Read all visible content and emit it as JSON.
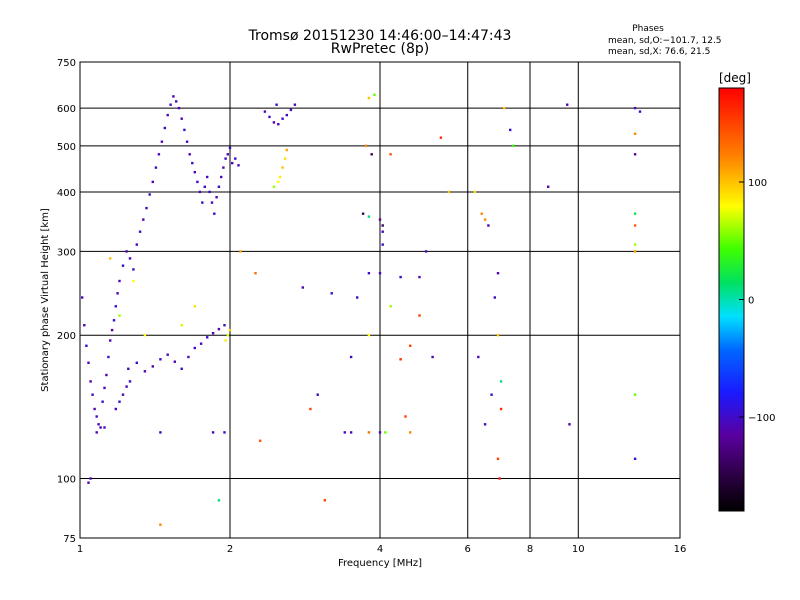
{
  "header": {
    "title_line1": "Tromsø 20151230 14:46:00–14:47:43",
    "title_line2": "RwPretec (8p)",
    "phases_title": "Phases",
    "phases_line1": "mean, sd,O:−101.7, 12.5",
    "phases_line2": "mean, sd,X:  76.6, 21.5"
  },
  "colorbar": {
    "unit_label": "[deg]",
    "range": [
      -180,
      180
    ],
    "ticks": [
      {
        "value": 100,
        "label": "100"
      },
      {
        "value": 0,
        "label": "0"
      },
      {
        "value": -100,
        "label": "−100"
      }
    ]
  },
  "chart_data": {
    "type": "scatter",
    "title": "Tromsø 20151230 14:46:00–14:47:43",
    "subtitle": "RwPretec (8p)",
    "xlabel": "Frequency [MHz]",
    "ylabel": "Stationary phase Virtual Height [km]",
    "x_scale": "log",
    "y_scale": "log",
    "xlim": [
      1,
      16
    ],
    "ylim": [
      75,
      750
    ],
    "grid": true,
    "x_ticks": [
      {
        "value": 1,
        "label": "1"
      },
      {
        "value": 2,
        "label": "2"
      },
      {
        "value": 4,
        "label": "4"
      },
      {
        "value": 6,
        "label": "6"
      },
      {
        "value": 8,
        "label": "8"
      },
      {
        "value": 10,
        "label": "10"
      },
      {
        "value": 16,
        "label": "16"
      }
    ],
    "y_ticks": [
      {
        "value": 75,
        "label": "75"
      },
      {
        "value": 100,
        "label": "100"
      },
      {
        "value": 200,
        "label": "200"
      },
      {
        "value": 300,
        "label": "300"
      },
      {
        "value": 400,
        "label": "400"
      },
      {
        "value": 500,
        "label": "500"
      },
      {
        "value": 600,
        "label": "600"
      },
      {
        "value": 750,
        "label": "750"
      }
    ],
    "color_variable": "phase [deg]",
    "points": [
      {
        "x": 1.01,
        "y": 240,
        "phase": -105
      },
      {
        "x": 1.02,
        "y": 210,
        "phase": -110
      },
      {
        "x": 1.03,
        "y": 190,
        "phase": -100
      },
      {
        "x": 1.04,
        "y": 175,
        "phase": -108
      },
      {
        "x": 1.05,
        "y": 160,
        "phase": -112
      },
      {
        "x": 1.06,
        "y": 150,
        "phase": -104
      },
      {
        "x": 1.07,
        "y": 140,
        "phase": -110
      },
      {
        "x": 1.08,
        "y": 135,
        "phase": -100
      },
      {
        "x": 1.09,
        "y": 130,
        "phase": -106
      },
      {
        "x": 1.1,
        "y": 128,
        "phase": -115
      },
      {
        "x": 1.11,
        "y": 145,
        "phase": -98
      },
      {
        "x": 1.12,
        "y": 155,
        "phase": -102
      },
      {
        "x": 1.13,
        "y": 165,
        "phase": -109
      },
      {
        "x": 1.14,
        "y": 180,
        "phase": -100
      },
      {
        "x": 1.15,
        "y": 195,
        "phase": -105
      },
      {
        "x": 1.16,
        "y": 205,
        "phase": -111
      },
      {
        "x": 1.17,
        "y": 215,
        "phase": -100
      },
      {
        "x": 1.18,
        "y": 230,
        "phase": -95
      },
      {
        "x": 1.19,
        "y": 245,
        "phase": -108
      },
      {
        "x": 1.2,
        "y": 260,
        "phase": -103
      },
      {
        "x": 1.22,
        "y": 280,
        "phase": -100
      },
      {
        "x": 1.24,
        "y": 300,
        "phase": -110
      },
      {
        "x": 1.26,
        "y": 290,
        "phase": -104
      },
      {
        "x": 1.28,
        "y": 275,
        "phase": -99
      },
      {
        "x": 1.3,
        "y": 310,
        "phase": -106
      },
      {
        "x": 1.32,
        "y": 330,
        "phase": -100
      },
      {
        "x": 1.34,
        "y": 350,
        "phase": -112
      },
      {
        "x": 1.36,
        "y": 370,
        "phase": -105
      },
      {
        "x": 1.38,
        "y": 395,
        "phase": -101
      },
      {
        "x": 1.4,
        "y": 420,
        "phase": -108
      },
      {
        "x": 1.42,
        "y": 450,
        "phase": -100
      },
      {
        "x": 1.44,
        "y": 480,
        "phase": -104
      },
      {
        "x": 1.46,
        "y": 510,
        "phase": -110
      },
      {
        "x": 1.48,
        "y": 545,
        "phase": -100
      },
      {
        "x": 1.5,
        "y": 580,
        "phase": -106
      },
      {
        "x": 1.52,
        "y": 610,
        "phase": -103
      },
      {
        "x": 1.54,
        "y": 635,
        "phase": -109
      },
      {
        "x": 1.56,
        "y": 620,
        "phase": -100
      },
      {
        "x": 1.58,
        "y": 600,
        "phase": -105
      },
      {
        "x": 1.6,
        "y": 570,
        "phase": -110
      },
      {
        "x": 1.62,
        "y": 540,
        "phase": -100
      },
      {
        "x": 1.64,
        "y": 510,
        "phase": -104
      },
      {
        "x": 1.66,
        "y": 480,
        "phase": -108
      },
      {
        "x": 1.68,
        "y": 460,
        "phase": -100
      },
      {
        "x": 1.7,
        "y": 440,
        "phase": -106
      },
      {
        "x": 1.72,
        "y": 420,
        "phase": -102
      },
      {
        "x": 1.74,
        "y": 400,
        "phase": -110
      },
      {
        "x": 1.76,
        "y": 380,
        "phase": -100
      },
      {
        "x": 1.78,
        "y": 410,
        "phase": -104
      },
      {
        "x": 1.8,
        "y": 430,
        "phase": -108
      },
      {
        "x": 1.82,
        "y": 400,
        "phase": -100
      },
      {
        "x": 1.84,
        "y": 380,
        "phase": -106
      },
      {
        "x": 1.86,
        "y": 360,
        "phase": -102
      },
      {
        "x": 1.88,
        "y": 390,
        "phase": -110
      },
      {
        "x": 1.9,
        "y": 410,
        "phase": -100
      },
      {
        "x": 1.92,
        "y": 430,
        "phase": -104
      },
      {
        "x": 1.94,
        "y": 450,
        "phase": -108
      },
      {
        "x": 1.96,
        "y": 470,
        "phase": -100
      },
      {
        "x": 1.98,
        "y": 480,
        "phase": -106
      },
      {
        "x": 2.0,
        "y": 495,
        "phase": -102
      },
      {
        "x": 2.02,
        "y": 460,
        "phase": -110
      },
      {
        "x": 2.05,
        "y": 470,
        "phase": -100
      },
      {
        "x": 2.08,
        "y": 455,
        "phase": -104
      },
      {
        "x": 1.25,
        "y": 170,
        "phase": -105
      },
      {
        "x": 1.3,
        "y": 175,
        "phase": -100
      },
      {
        "x": 1.35,
        "y": 168,
        "phase": -108
      },
      {
        "x": 1.4,
        "y": 172,
        "phase": -112
      },
      {
        "x": 1.45,
        "y": 178,
        "phase": -100
      },
      {
        "x": 1.5,
        "y": 182,
        "phase": -104
      },
      {
        "x": 1.55,
        "y": 176,
        "phase": -110
      },
      {
        "x": 1.6,
        "y": 170,
        "phase": -100
      },
      {
        "x": 1.65,
        "y": 180,
        "phase": -106
      },
      {
        "x": 1.7,
        "y": 188,
        "phase": -102
      },
      {
        "x": 1.75,
        "y": 192,
        "phase": -108
      },
      {
        "x": 1.8,
        "y": 198,
        "phase": -100
      },
      {
        "x": 1.85,
        "y": 202,
        "phase": -105
      },
      {
        "x": 1.9,
        "y": 206,
        "phase": -110
      },
      {
        "x": 1.95,
        "y": 210,
        "phase": -100
      },
      {
        "x": 1.98,
        "y": 200,
        "phase": 70
      },
      {
        "x": 1.96,
        "y": 195,
        "phase": 85
      },
      {
        "x": 2.0,
        "y": 205,
        "phase": 95
      },
      {
        "x": 1.18,
        "y": 140,
        "phase": -104
      },
      {
        "x": 1.2,
        "y": 145,
        "phase": -100
      },
      {
        "x": 1.22,
        "y": 150,
        "phase": -110
      },
      {
        "x": 1.24,
        "y": 156,
        "phase": -106
      },
      {
        "x": 1.26,
        "y": 160,
        "phase": -100
      },
      {
        "x": 1.08,
        "y": 125,
        "phase": -108
      },
      {
        "x": 1.12,
        "y": 128,
        "phase": -100
      },
      {
        "x": 1.45,
        "y": 125,
        "phase": -105
      },
      {
        "x": 1.85,
        "y": 125,
        "phase": -110
      },
      {
        "x": 1.95,
        "y": 125,
        "phase": -100
      },
      {
        "x": 1.05,
        "y": 100,
        "phase": -108
      },
      {
        "x": 1.04,
        "y": 98,
        "phase": -115
      },
      {
        "x": 2.35,
        "y": 590,
        "phase": -105
      },
      {
        "x": 2.4,
        "y": 575,
        "phase": -100
      },
      {
        "x": 2.45,
        "y": 560,
        "phase": -110
      },
      {
        "x": 2.5,
        "y": 555,
        "phase": -104
      },
      {
        "x": 2.55,
        "y": 570,
        "phase": -100
      },
      {
        "x": 2.6,
        "y": 580,
        "phase": -106
      },
      {
        "x": 2.65,
        "y": 595,
        "phase": -102
      },
      {
        "x": 2.7,
        "y": 610,
        "phase": -108
      },
      {
        "x": 2.48,
        "y": 610,
        "phase": -100
      },
      {
        "x": 2.52,
        "y": 430,
        "phase": 85
      },
      {
        "x": 2.55,
        "y": 450,
        "phase": 100
      },
      {
        "x": 2.58,
        "y": 470,
        "phase": 90
      },
      {
        "x": 2.6,
        "y": 490,
        "phase": 110
      },
      {
        "x": 2.5,
        "y": 420,
        "phase": 80
      },
      {
        "x": 2.45,
        "y": 410,
        "phase": 60
      },
      {
        "x": 1.35,
        "y": 200,
        "phase": 80
      },
      {
        "x": 1.6,
        "y": 210,
        "phase": 70
      },
      {
        "x": 1.7,
        "y": 230,
        "phase": 90
      },
      {
        "x": 1.2,
        "y": 220,
        "phase": 60
      },
      {
        "x": 1.28,
        "y": 260,
        "phase": 80
      },
      {
        "x": 1.15,
        "y": 290,
        "phase": 100
      },
      {
        "x": 2.1,
        "y": 300,
        "phase": 110
      },
      {
        "x": 2.25,
        "y": 270,
        "phase": 130
      },
      {
        "x": 3.8,
        "y": 630,
        "phase": 100
      },
      {
        "x": 3.9,
        "y": 640,
        "phase": 50
      },
      {
        "x": 3.75,
        "y": 500,
        "phase": 120
      },
      {
        "x": 3.85,
        "y": 480,
        "phase": -140
      },
      {
        "x": 4.2,
        "y": 480,
        "phase": 140
      },
      {
        "x": 3.7,
        "y": 360,
        "phase": -140
      },
      {
        "x": 3.8,
        "y": 355,
        "phase": 10
      },
      {
        "x": 4.0,
        "y": 350,
        "phase": -120
      },
      {
        "x": 4.05,
        "y": 340,
        "phase": -140
      },
      {
        "x": 4.05,
        "y": 330,
        "phase": -105
      },
      {
        "x": 4.05,
        "y": 310,
        "phase": -100
      },
      {
        "x": 4.95,
        "y": 300,
        "phase": -105
      },
      {
        "x": 3.8,
        "y": 270,
        "phase": -100
      },
      {
        "x": 4.0,
        "y": 270,
        "phase": -110
      },
      {
        "x": 4.4,
        "y": 265,
        "phase": -100
      },
      {
        "x": 4.8,
        "y": 265,
        "phase": -108
      },
      {
        "x": 3.6,
        "y": 240,
        "phase": -100
      },
      {
        "x": 4.2,
        "y": 230,
        "phase": 60
      },
      {
        "x": 4.8,
        "y": 220,
        "phase": 150
      },
      {
        "x": 3.2,
        "y": 245,
        "phase": -100
      },
      {
        "x": 2.8,
        "y": 252,
        "phase": -105
      },
      {
        "x": 3.8,
        "y": 200,
        "phase": 80
      },
      {
        "x": 4.6,
        "y": 190,
        "phase": 150
      },
      {
        "x": 5.1,
        "y": 180,
        "phase": -105
      },
      {
        "x": 4.4,
        "y": 178,
        "phase": 160
      },
      {
        "x": 3.5,
        "y": 180,
        "phase": -100
      },
      {
        "x": 2.9,
        "y": 140,
        "phase": 150
      },
      {
        "x": 3.0,
        "y": 150,
        "phase": -100
      },
      {
        "x": 3.5,
        "y": 125,
        "phase": -110
      },
      {
        "x": 3.8,
        "y": 125,
        "phase": 130
      },
      {
        "x": 4.0,
        "y": 125,
        "phase": -105
      },
      {
        "x": 4.1,
        "y": 125,
        "phase": 50
      },
      {
        "x": 4.5,
        "y": 135,
        "phase": 150
      },
      {
        "x": 4.6,
        "y": 125,
        "phase": 120
      },
      {
        "x": 3.4,
        "y": 125,
        "phase": -100
      },
      {
        "x": 3.1,
        "y": 90,
        "phase": 150
      },
      {
        "x": 2.3,
        "y": 120,
        "phase": 140
      },
      {
        "x": 1.9,
        "y": 90,
        "phase": 10
      },
      {
        "x": 1.45,
        "y": 80,
        "phase": 120
      },
      {
        "x": 5.5,
        "y": 400,
        "phase": 100
      },
      {
        "x": 6.2,
        "y": 400,
        "phase": 90
      },
      {
        "x": 6.4,
        "y": 360,
        "phase": 120
      },
      {
        "x": 6.5,
        "y": 350,
        "phase": 120
      },
      {
        "x": 6.6,
        "y": 340,
        "phase": -110
      },
      {
        "x": 7.3,
        "y": 540,
        "phase": -100
      },
      {
        "x": 7.4,
        "y": 500,
        "phase": 40
      },
      {
        "x": 7.1,
        "y": 600,
        "phase": 100
      },
      {
        "x": 5.3,
        "y": 520,
        "phase": 160
      },
      {
        "x": 6.9,
        "y": 270,
        "phase": -110
      },
      {
        "x": 6.8,
        "y": 240,
        "phase": -100
      },
      {
        "x": 6.9,
        "y": 200,
        "phase": 100
      },
      {
        "x": 6.3,
        "y": 180,
        "phase": -105
      },
      {
        "x": 7.0,
        "y": 160,
        "phase": 10
      },
      {
        "x": 6.7,
        "y": 150,
        "phase": -100
      },
      {
        "x": 7.0,
        "y": 140,
        "phase": 160
      },
      {
        "x": 6.5,
        "y": 130,
        "phase": -105
      },
      {
        "x": 6.9,
        "y": 110,
        "phase": 150
      },
      {
        "x": 6.95,
        "y": 100,
        "phase": 170
      },
      {
        "x": 8.7,
        "y": 410,
        "phase": -110
      },
      {
        "x": 9.5,
        "y": 610,
        "phase": -105
      },
      {
        "x": 9.6,
        "y": 130,
        "phase": -110
      },
      {
        "x": 13.0,
        "y": 600,
        "phase": -105
      },
      {
        "x": 13.0,
        "y": 530,
        "phase": 120
      },
      {
        "x": 13.0,
        "y": 480,
        "phase": -115
      },
      {
        "x": 13.0,
        "y": 360,
        "phase": 20
      },
      {
        "x": 13.0,
        "y": 340,
        "phase": 140
      },
      {
        "x": 13.0,
        "y": 310,
        "phase": 60
      },
      {
        "x": 13.0,
        "y": 300,
        "phase": 110
      },
      {
        "x": 13.0,
        "y": 150,
        "phase": 50
      },
      {
        "x": 13.0,
        "y": 110,
        "phase": -100
      },
      {
        "x": 13.3,
        "y": 590,
        "phase": -100
      }
    ]
  }
}
